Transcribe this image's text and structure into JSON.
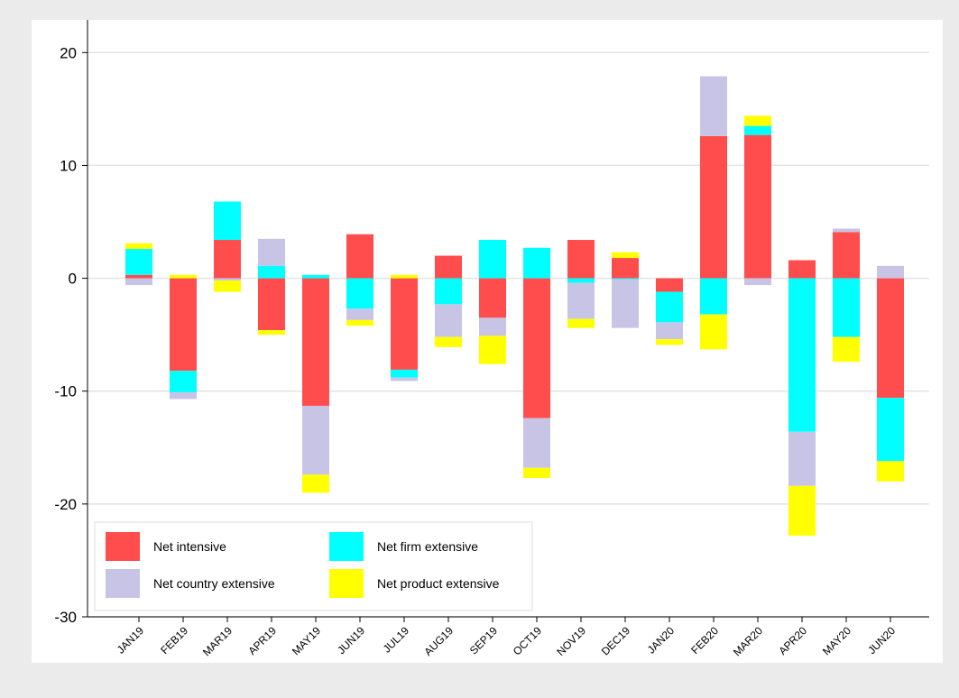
{
  "chart_data": {
    "type": "stacked-bar",
    "categories": [
      "JAN19",
      "FEB19",
      "MAR19",
      "APR19",
      "MAY19",
      "JUN19",
      "JUL19",
      "AUG19",
      "SEP19",
      "OCT19",
      "NOV19",
      "DEC19",
      "JAN20",
      "FEB20",
      "MAR20",
      "APR20",
      "MAY20",
      "JUN20"
    ],
    "series": [
      {
        "name": "Net intensive",
        "color": "#ff4c4c",
        "values": [
          0.3,
          -8.2,
          3.4,
          -4.6,
          -11.3,
          3.9,
          -8.1,
          2.0,
          -3.5,
          -12.4,
          3.4,
          1.8,
          -1.2,
          12.6,
          12.7,
          1.6,
          4.1,
          -10.6
        ]
      },
      {
        "name": "Net firm extensive",
        "color": "#00ffff",
        "values": [
          2.3,
          -1.9,
          3.4,
          1.1,
          0.3,
          -2.7,
          -0.7,
          -2.3,
          3.4,
          2.7,
          -0.4,
          -0.1,
          -2.7,
          -3.2,
          0.8,
          -13.6,
          -5.2,
          -5.6
        ]
      },
      {
        "name": "Net country extensive",
        "color": "#c8c4e6",
        "values": [
          -0.6,
          -0.6,
          -0.2,
          2.4,
          -6.1,
          -1.0,
          -0.3,
          -2.9,
          -1.6,
          -4.4,
          -3.2,
          -4.3,
          -1.5,
          5.3,
          -0.6,
          -4.8,
          0.3,
          1.1
        ]
      },
      {
        "name": "Net product extensive",
        "color": "#ffff00",
        "values": [
          0.5,
          0.3,
          -1.0,
          -0.4,
          -1.6,
          -0.5,
          0.3,
          -0.9,
          -2.5,
          -0.9,
          -0.8,
          0.5,
          -0.5,
          -3.1,
          0.9,
          -4.4,
          -2.2,
          -1.8
        ]
      }
    ],
    "ylim": [
      -30,
      22.9
    ],
    "yticks": [
      20,
      10,
      0,
      -10,
      -20,
      -30
    ],
    "grid": true,
    "legend": "lower left"
  }
}
